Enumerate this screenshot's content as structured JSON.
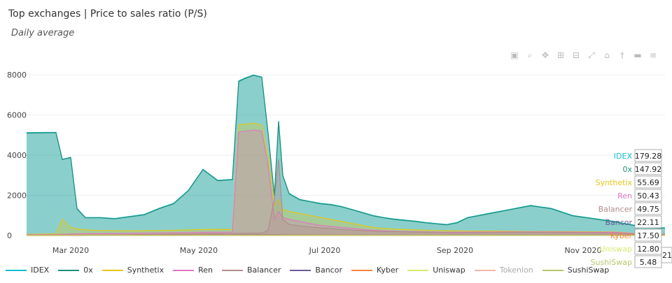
{
  "title": "Top exchanges | Price to sales ratio (P/S)",
  "subtitle": "Daily average",
  "modebar": [
    {
      "name": "camera-icon",
      "glyph": "▣"
    },
    {
      "name": "zoom-icon",
      "glyph": "⌕"
    },
    {
      "name": "pan-icon",
      "glyph": "✥"
    },
    {
      "name": "zoom-in-icon",
      "glyph": "⊞"
    },
    {
      "name": "zoom-out-icon",
      "glyph": "⊟"
    },
    {
      "name": "autoscale-icon",
      "glyph": "⤢"
    },
    {
      "name": "home-icon",
      "glyph": "⌂"
    },
    {
      "name": "spike-lines-icon",
      "glyph": "†"
    },
    {
      "name": "hover-closest-icon",
      "glyph": "▬"
    },
    {
      "name": "hover-compare-icon",
      "glyph": "≡"
    }
  ],
  "chart_data": {
    "type": "area",
    "xlabel": "",
    "ylabel": "",
    "x_ticks": [
      "Mar 2020",
      "May 2020",
      "Jul 2020",
      "Sep 2020",
      "Nov 2020"
    ],
    "y_ticks": [
      0,
      2000,
      4000,
      6000,
      8000
    ],
    "ylim": [
      0,
      8600
    ],
    "x_range_days": [
      0,
      304
    ],
    "legend_position": "bottom",
    "x": [
      0,
      14,
      17,
      21,
      24,
      28,
      35,
      42,
      49,
      56,
      63,
      70,
      77,
      84,
      91,
      98,
      101,
      104,
      108,
      112,
      115,
      118,
      120,
      122,
      125,
      130,
      135,
      140,
      145,
      150,
      155,
      160,
      165,
      170,
      175,
      180,
      185,
      190,
      195,
      200,
      205,
      210,
      220,
      230,
      240,
      250,
      260,
      270,
      280,
      290,
      300,
      304
    ],
    "series": [
      {
        "name": "IDEX",
        "color": "#17becf",
        "values": [
          5130,
          5140,
          3800,
          3900,
          1350,
          900,
          900,
          850,
          950,
          1050,
          1350,
          1600,
          2250,
          3300,
          2750,
          2800,
          7700,
          7850,
          8000,
          7900,
          5100,
          2000,
          5700,
          3000,
          2100,
          1800,
          1700,
          1600,
          1550,
          1450,
          1300,
          1150,
          1000,
          900,
          820,
          770,
          720,
          650,
          600,
          550,
          650,
          900,
          1100,
          1300,
          1500,
          1350,
          1000,
          850,
          700,
          500,
          400,
          380
        ]
      },
      {
        "name": "0x",
        "color": "#1f8f78",
        "values": [
          5100,
          5120,
          3780,
          3880,
          1330,
          880,
          880,
          830,
          930,
          1030,
          1330,
          1580,
          2230,
          3280,
          2730,
          2780,
          7670,
          7820,
          7980,
          7880,
          5080,
          1980,
          5680,
          2980,
          2080,
          1780,
          1680,
          1580,
          1530,
          1430,
          1280,
          1130,
          980,
          880,
          800,
          750,
          700,
          630,
          580,
          530,
          630,
          880,
          1080,
          1280,
          1480,
          1330,
          980,
          830,
          680,
          480,
          380,
          360
        ]
      },
      {
        "name": "Synthetix",
        "color": "#e6c619",
        "values": [
          60,
          80,
          800,
          400,
          330,
          280,
          250,
          240,
          230,
          240,
          250,
          260,
          280,
          300,
          300,
          300,
          5500,
          5550,
          5600,
          5500,
          4000,
          1500,
          1800,
          1300,
          1200,
          1100,
          1000,
          900,
          800,
          700,
          600,
          500,
          400,
          350,
          320,
          300,
          280,
          260,
          250,
          240,
          230,
          220,
          220,
          210,
          200,
          200,
          190,
          185,
          180,
          100,
          80,
          70
        ]
      },
      {
        "name": "Ren",
        "color": "#e377c2",
        "values": [
          40,
          50,
          60,
          70,
          80,
          90,
          90,
          100,
          110,
          120,
          130,
          140,
          150,
          160,
          165,
          170,
          5150,
          5200,
          5250,
          5200,
          3500,
          800,
          1200,
          900,
          800,
          700,
          600,
          500,
          450,
          400,
          350,
          300,
          260,
          230,
          210,
          200,
          190,
          180,
          170,
          160,
          160,
          170,
          175,
          180,
          180,
          175,
          170,
          165,
          160,
          90,
          70,
          60
        ]
      },
      {
        "name": "Balancer",
        "color": "#b28c8c",
        "values": [
          0,
          0,
          0,
          0,
          0,
          0,
          20,
          30,
          40,
          50,
          60,
          70,
          80,
          90,
          95,
          100,
          110,
          110,
          120,
          120,
          250,
          1800,
          3800,
          800,
          550,
          480,
          420,
          380,
          340,
          300,
          270,
          240,
          220,
          200,
          190,
          180,
          170,
          160,
          150,
          140,
          130,
          140,
          150,
          160,
          160,
          150,
          140,
          130,
          120,
          70,
          60,
          50
        ]
      },
      {
        "name": "Bancor",
        "color": "#6a5a9a",
        "values": [
          20,
          22,
          22,
          23,
          24,
          25,
          25,
          25,
          26,
          27,
          28,
          28,
          28,
          29,
          30,
          30,
          35,
          35,
          35,
          35,
          35,
          35,
          35,
          32,
          30,
          30,
          28,
          28,
          27,
          26,
          25,
          25,
          24,
          24,
          23,
          23,
          23,
          22,
          22,
          22,
          22,
          22,
          22,
          22,
          22,
          22,
          22,
          22,
          22,
          22,
          22,
          22
        ]
      },
      {
        "name": "Kyber",
        "color": "#f4853e",
        "values": [
          20,
          20,
          21,
          21,
          21,
          22,
          22,
          22,
          22,
          22,
          22,
          22,
          22,
          22,
          22,
          22,
          25,
          25,
          25,
          25,
          25,
          25,
          25,
          22,
          22,
          21,
          21,
          20,
          20,
          20,
          20,
          19,
          19,
          19,
          19,
          19,
          18,
          18,
          18,
          18,
          18,
          18,
          18,
          18,
          18,
          18,
          18,
          18,
          18,
          18,
          18,
          18
        ]
      },
      {
        "name": "Uniswap",
        "color": "#d8e86e",
        "values": [
          10,
          10,
          10,
          10,
          10,
          10,
          10,
          10,
          10,
          10,
          10,
          10,
          10,
          10,
          10,
          10,
          12,
          12,
          12,
          12,
          12,
          12,
          12,
          12,
          12,
          12,
          12,
          12,
          12,
          12,
          12,
          12,
          12,
          12,
          12,
          12,
          12,
          12,
          12,
          12,
          12,
          12,
          12,
          12,
          12,
          12,
          12,
          12,
          12,
          12,
          12,
          12
        ]
      },
      {
        "name": "Tokenlon",
        "color": "#f4b6a8",
        "values": [
          0,
          0,
          0,
          0,
          0,
          0,
          0,
          0,
          0,
          0,
          0,
          0,
          0,
          0,
          0,
          0,
          0,
          0,
          0,
          0,
          0,
          0,
          0,
          0,
          0,
          0,
          0,
          0,
          0,
          0,
          0,
          0,
          0,
          0,
          0,
          0,
          0,
          0,
          0,
          0,
          0,
          0,
          0,
          0,
          0,
          0,
          0,
          0,
          0,
          0,
          0,
          0
        ]
      },
      {
        "name": "SushiSwap",
        "color": "#b7c76a",
        "values": [
          0,
          0,
          0,
          0,
          0,
          0,
          0,
          0,
          0,
          0,
          0,
          0,
          0,
          0,
          0,
          0,
          0,
          0,
          0,
          0,
          0,
          0,
          0,
          0,
          0,
          0,
          0,
          0,
          0,
          0,
          0,
          0,
          0,
          0,
          0,
          0,
          0,
          0,
          0,
          0,
          0,
          0,
          0,
          0,
          0,
          0,
          0,
          0,
          0,
          0,
          5,
          5
        ]
      }
    ],
    "hover": [
      {
        "name": "IDEX",
        "value": "179.28",
        "color": "#17becf"
      },
      {
        "name": "0x",
        "value": "147.92",
        "color": "#1f8f78"
      },
      {
        "name": "Synthetix",
        "value": "55.69",
        "color": "#e6c619"
      },
      {
        "name": "Ren",
        "value": "50.43",
        "color": "#e377c2"
      },
      {
        "name": "Balancer",
        "value": "49.75",
        "color": "#b28c8c"
      },
      {
        "name": "Bancor",
        "value": "22.11",
        "color": "#6a5a9a"
      },
      {
        "name": "Kyber",
        "value": "17.50",
        "color": "#f4853e"
      },
      {
        "name": "Uniswap",
        "value": "12.80",
        "color": "#d8e86e"
      },
      {
        "name": "SushiSwap",
        "value": "5.48",
        "color": "#b7c76a"
      }
    ],
    "hover_extra": "21"
  }
}
